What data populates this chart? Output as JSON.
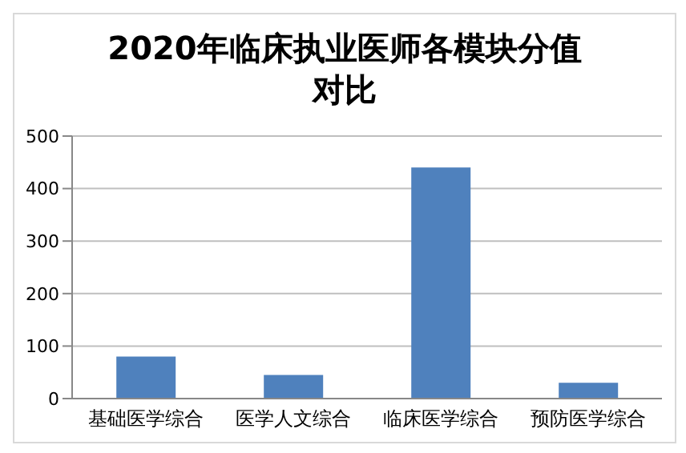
{
  "chart_data": {
    "type": "bar",
    "title": "2020年临床执业医师各模块分值对比",
    "categories": [
      "基础医学综合",
      "医学人文综合",
      "临床医学综合",
      "预防医学综合"
    ],
    "values": [
      80,
      45,
      440,
      30
    ],
    "color": "#4f81bd",
    "ylim": [
      0,
      500
    ],
    "yticks": [
      0,
      100,
      200,
      300,
      400,
      500
    ],
    "grid": "y",
    "legend": false
  }
}
